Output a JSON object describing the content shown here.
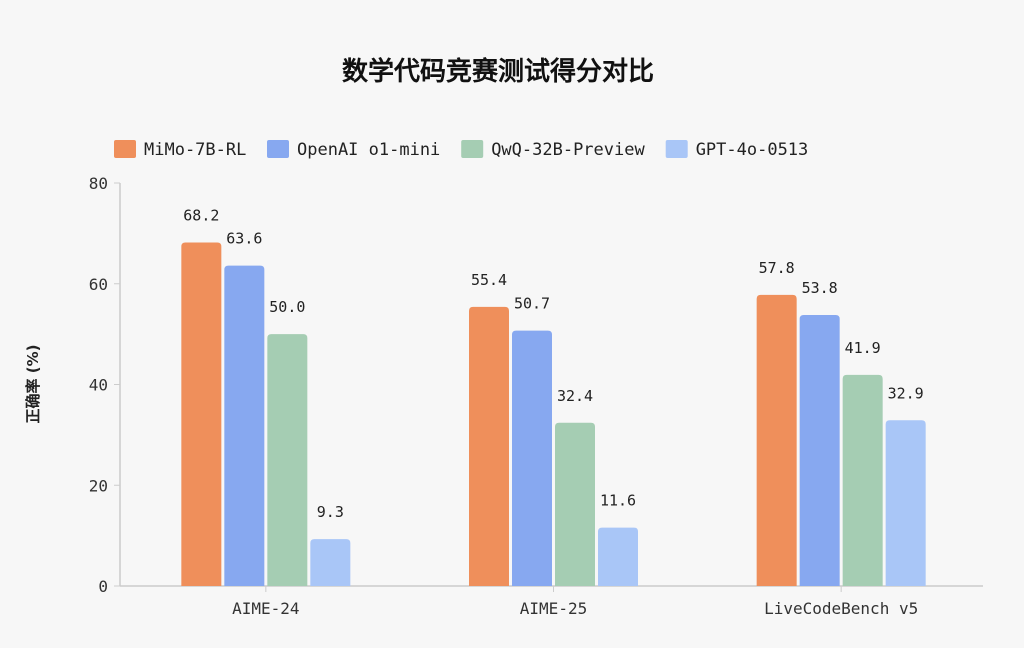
{
  "chart_data": {
    "type": "bar",
    "title": "数学代码竞赛测试得分对比",
    "xlabel": "",
    "ylabel": "正确率 (%)",
    "ylim": [
      0,
      80
    ],
    "yticks": [
      0,
      20,
      40,
      60,
      80
    ],
    "grid": false,
    "legend_position": "top",
    "categories": [
      "AIME-24",
      "AIME-25",
      "LiveCodeBench v5"
    ],
    "series": [
      {
        "name": "MiMo-7B-RL",
        "color": "#EF8F5B",
        "values": [
          68.2,
          55.4,
          57.8
        ]
      },
      {
        "name": "OpenAI o1-mini",
        "color": "#87A8F0",
        "values": [
          63.6,
          50.7,
          53.8
        ]
      },
      {
        "name": "QwQ-32B-Preview",
        "color": "#A5CDB3",
        "values": [
          50.0,
          32.4,
          41.9
        ]
      },
      {
        "name": "GPT-4o-0513",
        "color": "#A9C6F7",
        "values": [
          9.3,
          11.6,
          32.9
        ]
      }
    ]
  }
}
